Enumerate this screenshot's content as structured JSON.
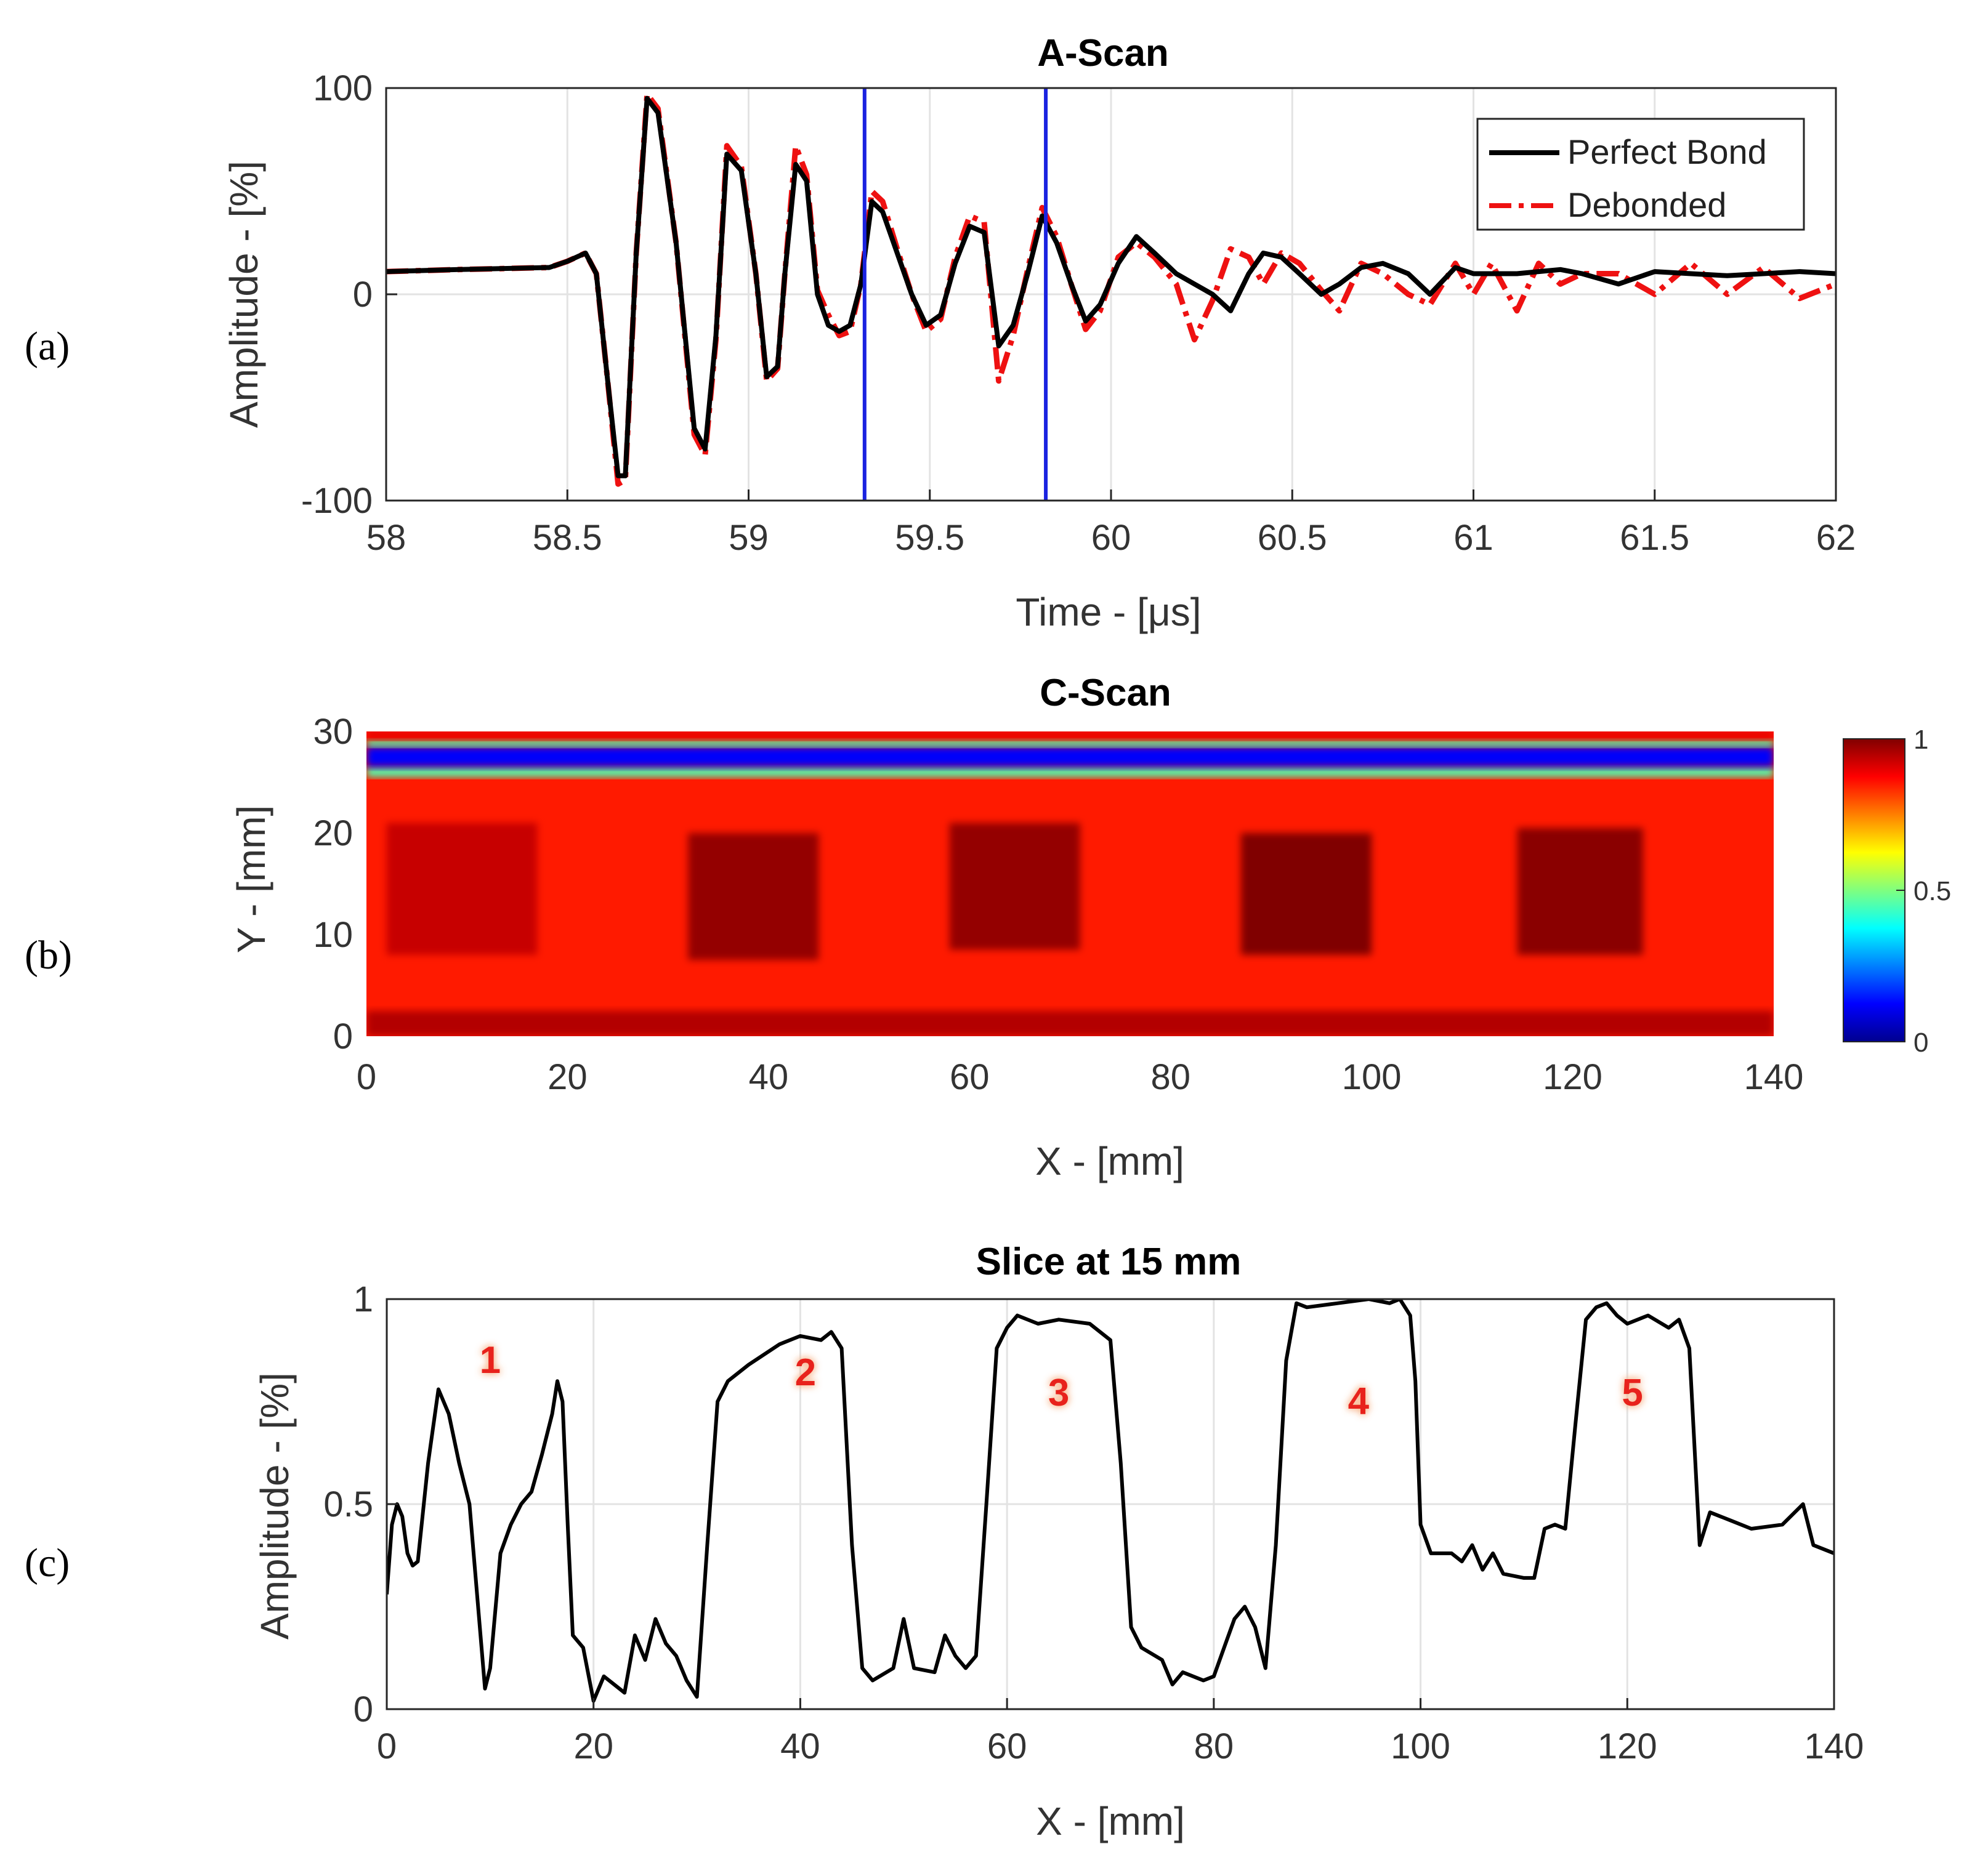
{
  "panel_labels": [
    "(a)",
    "(b)",
    "(c)"
  ],
  "colors": {
    "perfect_bond": "#000000",
    "debonded": "#ee1111",
    "gate_lines": "#1a22e0",
    "grid": "#e3e3e3"
  },
  "chart_data": [
    {
      "id": "a",
      "type": "line",
      "title": "A-Scan",
      "xlabel": "Time - [μs]",
      "ylabel": "Amplitude - [%]",
      "xlim": [
        58,
        62
      ],
      "ylim": [
        -100,
        100
      ],
      "xticks": [
        58,
        58.5,
        59,
        59.5,
        60,
        60.5,
        61,
        61.5,
        62
      ],
      "xtick_labels": [
        "58",
        "58.5",
        "59",
        "59.5",
        "60",
        "60.5",
        "61",
        "61.5",
        "62"
      ],
      "yticks": [
        -100,
        0,
        100
      ],
      "ytick_labels": [
        "-100",
        "0",
        "100"
      ],
      "grid": true,
      "legend_position": "top-right",
      "gate_lines_x": [
        59.32,
        59.82
      ],
      "series": [
        {
          "name": "Perfect Bond",
          "style": "solid",
          "x": [
            58,
            58.2,
            58.45,
            58.5,
            58.55,
            58.58,
            58.61,
            58.64,
            58.66,
            58.69,
            58.72,
            58.75,
            58.8,
            58.85,
            58.88,
            58.91,
            58.94,
            58.98,
            59.02,
            59.05,
            59.08,
            59.1,
            59.13,
            59.16,
            59.19,
            59.22,
            59.25,
            59.28,
            59.31,
            59.34,
            59.37,
            59.41,
            59.45,
            59.49,
            59.53,
            59.57,
            59.61,
            59.65,
            59.69,
            59.73,
            59.77,
            59.81,
            59.85,
            59.89,
            59.93,
            59.97,
            60.02,
            60.07,
            60.12,
            60.18,
            60.23,
            60.28,
            60.33,
            60.38,
            60.42,
            60.47,
            60.52,
            60.58,
            60.63,
            60.69,
            60.75,
            60.82,
            60.88,
            60.95,
            61.0,
            61.05,
            61.12,
            61.18,
            61.24,
            61.3,
            61.4,
            61.5,
            61.6,
            61.7,
            61.8,
            61.9,
            62.0
          ],
          "y": [
            11,
            12,
            13,
            16,
            20,
            10,
            -40,
            -88,
            -88,
            20,
            95,
            88,
            25,
            -65,
            -75,
            -20,
            68,
            60,
            10,
            -40,
            -35,
            10,
            63,
            55,
            0,
            -15,
            -18,
            -15,
            5,
            45,
            40,
            20,
            0,
            -15,
            -10,
            15,
            33,
            30,
            -25,
            -15,
            10,
            38,
            25,
            5,
            -13,
            -5,
            15,
            28,
            20,
            10,
            5,
            0,
            -8,
            10,
            20,
            18,
            10,
            0,
            5,
            13,
            15,
            10,
            0,
            13,
            10,
            10,
            10,
            11,
            12,
            10,
            5,
            11,
            10,
            9,
            10,
            11,
            10
          ]
        },
        {
          "name": "Debonded",
          "style": "dashdot",
          "x": [
            58,
            58.2,
            58.45,
            58.5,
            58.55,
            58.58,
            58.61,
            58.64,
            58.66,
            58.69,
            58.72,
            58.75,
            58.8,
            58.85,
            58.88,
            58.91,
            58.94,
            58.98,
            59.02,
            59.05,
            59.08,
            59.1,
            59.13,
            59.16,
            59.19,
            59.22,
            59.25,
            59.28,
            59.31,
            59.34,
            59.37,
            59.41,
            59.45,
            59.49,
            59.53,
            59.57,
            59.61,
            59.65,
            59.69,
            59.73,
            59.77,
            59.81,
            59.85,
            59.89,
            59.93,
            59.97,
            60.02,
            60.07,
            60.12,
            60.18,
            60.23,
            60.28,
            60.33,
            60.38,
            60.42,
            60.47,
            60.52,
            60.58,
            60.63,
            60.69,
            60.75,
            60.82,
            60.88,
            60.95,
            61.0,
            61.05,
            61.12,
            61.18,
            61.24,
            61.3,
            61.4,
            61.5,
            61.6,
            61.7,
            61.8,
            61.9,
            62.0
          ],
          "y": [
            11,
            12,
            13,
            16,
            20,
            10,
            -40,
            -92,
            -90,
            20,
            97,
            90,
            25,
            -68,
            -78,
            -22,
            72,
            62,
            10,
            -42,
            -36,
            10,
            72,
            58,
            2,
            -10,
            -20,
            -18,
            5,
            50,
            45,
            22,
            0,
            -18,
            -12,
            18,
            38,
            35,
            -42,
            -20,
            12,
            42,
            28,
            5,
            -17,
            -8,
            18,
            25,
            18,
            5,
            -22,
            -3,
            22,
            18,
            5,
            20,
            15,
            2,
            -8,
            15,
            10,
            0,
            -5,
            15,
            0,
            15,
            -8,
            15,
            5,
            10,
            10,
            0,
            15,
            0,
            13,
            -2,
            5
          ]
        }
      ]
    },
    {
      "id": "b",
      "type": "heatmap",
      "title": "C-Scan",
      "xlabel": "X - [mm]",
      "ylabel": "Y - [mm]",
      "xlim": [
        0,
        140
      ],
      "ylim": [
        0,
        30
      ],
      "xticks": [
        0,
        20,
        40,
        60,
        80,
        100,
        120,
        140
      ],
      "xtick_labels": [
        "0",
        "20",
        "40",
        "60",
        "80",
        "100",
        "120",
        "140"
      ],
      "yticks": [
        0,
        10,
        20,
        30
      ],
      "ytick_labels": [
        "0",
        "10",
        "20",
        "30"
      ],
      "colormap": "jet",
      "colorbar": {
        "range": [
          0,
          1
        ],
        "ticks": [
          0,
          0.5,
          1
        ],
        "tick_labels": [
          "0",
          "0.5",
          "1"
        ],
        "position": "right"
      },
      "background_value": 0.85,
      "bands": [
        {
          "y0": 0,
          "y1": 2.5,
          "value": 0.95
        },
        {
          "y0": 25.5,
          "y1": 26.5,
          "value": 0.45
        },
        {
          "y0": 26.5,
          "y1": 28.5,
          "value": 0.12
        },
        {
          "y0": 28.5,
          "y1": 29.2,
          "value": 0.45
        },
        {
          "y0": 29.2,
          "y1": 30,
          "value": 0.9
        }
      ],
      "defects": [
        {
          "x0": 2,
          "x1": 17,
          "y0": 8,
          "y1": 21,
          "value": 0.93
        },
        {
          "x0": 32,
          "x1": 45,
          "y0": 7.5,
          "y1": 20,
          "value": 0.98
        },
        {
          "x0": 58,
          "x1": 71,
          "y0": 8.5,
          "y1": 21,
          "value": 0.98
        },
        {
          "x0": 87,
          "x1": 100,
          "y0": 8,
          "y1": 20,
          "value": 1.0
        },
        {
          "x0": 114.5,
          "x1": 127,
          "y0": 8,
          "y1": 20.5,
          "value": 0.99
        }
      ]
    },
    {
      "id": "c",
      "type": "line",
      "title": "Slice at 15 mm",
      "xlabel": "X - [mm]",
      "ylabel": "Amplitude - [%]",
      "xlim": [
        0,
        140
      ],
      "ylim": [
        0,
        1
      ],
      "xticks": [
        0,
        20,
        40,
        60,
        80,
        100,
        120,
        140
      ],
      "xtick_labels": [
        "0",
        "20",
        "40",
        "60",
        "80",
        "100",
        "120",
        "140"
      ],
      "yticks": [
        0,
        0.5,
        1
      ],
      "ytick_labels": [
        "0",
        "0.5",
        "1"
      ],
      "grid": true,
      "region_labels": [
        {
          "text": "1",
          "x": 10,
          "y": 0.82
        },
        {
          "text": "2",
          "x": 40.5,
          "y": 0.79
        },
        {
          "text": "3",
          "x": 65,
          "y": 0.74
        },
        {
          "text": "4",
          "x": 94,
          "y": 0.72
        },
        {
          "text": "5",
          "x": 120.5,
          "y": 0.74
        }
      ],
      "series": [
        {
          "x": [
            0,
            0.5,
            1,
            1.5,
            2,
            2.5,
            3,
            4,
            5,
            6,
            7,
            8,
            9,
            9.5,
            10,
            11,
            12,
            13,
            14,
            15,
            16,
            16.5,
            17,
            17.5,
            18,
            19,
            20,
            21,
            22,
            23,
            24,
            25,
            26,
            27,
            28,
            29,
            30,
            31,
            32,
            33,
            35,
            38,
            40,
            42,
            43,
            44,
            45,
            46,
            47,
            49,
            50,
            51,
            53,
            54,
            55,
            56,
            57,
            58,
            59,
            60,
            61,
            63,
            65,
            68,
            70,
            71,
            72,
            73,
            75,
            76,
            77,
            79,
            80,
            81,
            82,
            83,
            84,
            85,
            86,
            87,
            88,
            89,
            92,
            95,
            97,
            98,
            99,
            99.5,
            100,
            101,
            103,
            104,
            105,
            106,
            107,
            108,
            110,
            111,
            112,
            113,
            114,
            115,
            116,
            117,
            118,
            119,
            120,
            122,
            124,
            125,
            126,
            127,
            128,
            130,
            132,
            135,
            137,
            138,
            140
          ],
          "y": [
            0.28,
            0.45,
            0.5,
            0.47,
            0.38,
            0.35,
            0.36,
            0.6,
            0.78,
            0.72,
            0.6,
            0.5,
            0.2,
            0.05,
            0.1,
            0.38,
            0.45,
            0.5,
            0.53,
            0.62,
            0.72,
            0.8,
            0.75,
            0.45,
            0.18,
            0.15,
            0.02,
            0.08,
            0.06,
            0.04,
            0.18,
            0.12,
            0.22,
            0.16,
            0.13,
            0.07,
            0.03,
            0.4,
            0.75,
            0.8,
            0.84,
            0.89,
            0.91,
            0.9,
            0.92,
            0.88,
            0.4,
            0.1,
            0.07,
            0.1,
            0.22,
            0.1,
            0.09,
            0.18,
            0.13,
            0.1,
            0.13,
            0.5,
            0.88,
            0.93,
            0.96,
            0.94,
            0.95,
            0.94,
            0.9,
            0.6,
            0.2,
            0.15,
            0.12,
            0.06,
            0.09,
            0.07,
            0.08,
            0.15,
            0.22,
            0.25,
            0.2,
            0.1,
            0.4,
            0.85,
            0.99,
            0.98,
            0.99,
            1.0,
            0.99,
            1.0,
            0.96,
            0.8,
            0.45,
            0.38,
            0.38,
            0.36,
            0.4,
            0.34,
            0.38,
            0.33,
            0.32,
            0.32,
            0.44,
            0.45,
            0.44,
            0.7,
            0.95,
            0.98,
            0.99,
            0.96,
            0.94,
            0.96,
            0.93,
            0.95,
            0.88,
            0.4,
            0.48,
            0.46,
            0.44,
            0.45,
            0.5,
            0.4,
            0.38
          ]
        }
      ]
    }
  ]
}
